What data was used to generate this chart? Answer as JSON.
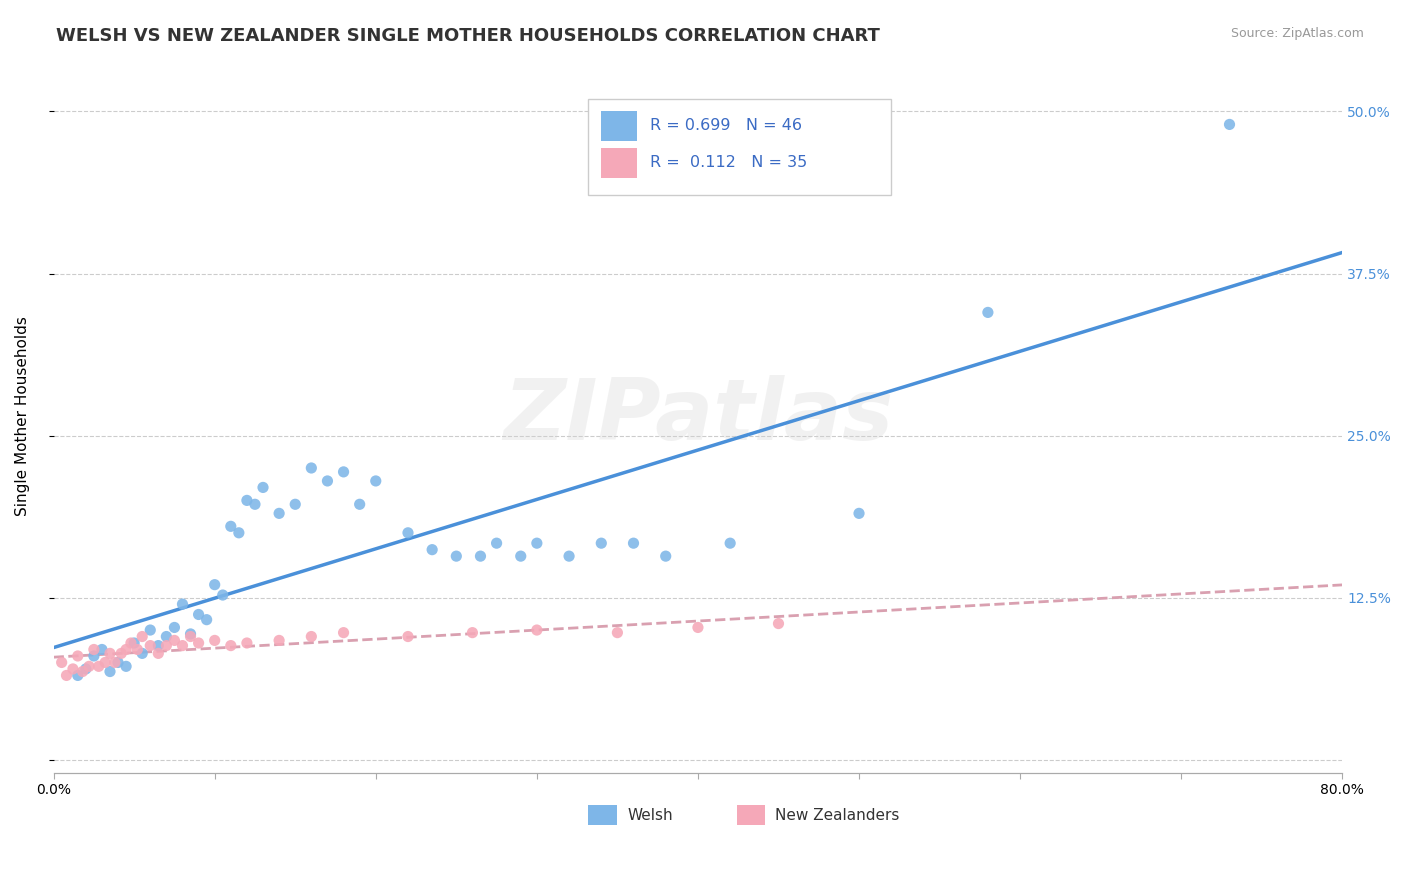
{
  "title": "WELSH VS NEW ZEALANDER SINGLE MOTHER HOUSEHOLDS CORRELATION CHART",
  "source_text": "Source: ZipAtlas.com",
  "ylabel": "Single Mother Households",
  "xlim": [
    0.0,
    0.8
  ],
  "ylim": [
    -0.01,
    0.54
  ],
  "xticks": [
    0.0,
    0.1,
    0.2,
    0.3,
    0.4,
    0.5,
    0.6,
    0.7,
    0.8
  ],
  "xticklabels": [
    "0.0%",
    "",
    "",
    "",
    "",
    "",
    "",
    "",
    "80.0%"
  ],
  "ytick_positions": [
    0.0,
    0.125,
    0.25,
    0.375,
    0.5
  ],
  "ytick_labels": [
    "",
    "12.5%",
    "25.0%",
    "37.5%",
    "50.0%"
  ],
  "welsh_color": "#7EB6E8",
  "nz_color": "#F5A8B8",
  "welsh_line_color": "#4A90D9",
  "nz_line_color": "#D9A0B0",
  "R_welsh": 0.699,
  "N_welsh": 46,
  "R_nz": 0.112,
  "N_nz": 35,
  "legend_color": "#3B6BC4",
  "watermark": "ZIPatlas",
  "background_color": "#FFFFFF",
  "grid_color": "#CCCCCC",
  "welsh_scatter_x": [
    0.015,
    0.02,
    0.025,
    0.03,
    0.035,
    0.04,
    0.045,
    0.05,
    0.055,
    0.06,
    0.065,
    0.07,
    0.075,
    0.08,
    0.085,
    0.09,
    0.095,
    0.1,
    0.105,
    0.11,
    0.115,
    0.12,
    0.125,
    0.13,
    0.14,
    0.15,
    0.16,
    0.17,
    0.18,
    0.19,
    0.2,
    0.22,
    0.235,
    0.25,
    0.265,
    0.275,
    0.29,
    0.3,
    0.32,
    0.34,
    0.36,
    0.38,
    0.42,
    0.5,
    0.58,
    0.73
  ],
  "welsh_scatter_y": [
    0.065,
    0.07,
    0.08,
    0.085,
    0.068,
    0.075,
    0.072,
    0.09,
    0.082,
    0.1,
    0.088,
    0.095,
    0.102,
    0.12,
    0.097,
    0.112,
    0.108,
    0.135,
    0.127,
    0.18,
    0.175,
    0.2,
    0.197,
    0.21,
    0.19,
    0.197,
    0.225,
    0.215,
    0.222,
    0.197,
    0.215,
    0.175,
    0.162,
    0.157,
    0.157,
    0.167,
    0.157,
    0.167,
    0.157,
    0.167,
    0.167,
    0.157,
    0.167,
    0.19,
    0.345,
    0.49
  ],
  "nz_scatter_x": [
    0.005,
    0.008,
    0.012,
    0.015,
    0.018,
    0.022,
    0.025,
    0.028,
    0.032,
    0.035,
    0.038,
    0.042,
    0.045,
    0.048,
    0.052,
    0.055,
    0.06,
    0.065,
    0.07,
    0.075,
    0.08,
    0.085,
    0.09,
    0.1,
    0.11,
    0.12,
    0.14,
    0.16,
    0.18,
    0.22,
    0.26,
    0.3,
    0.35,
    0.4,
    0.45
  ],
  "nz_scatter_y": [
    0.075,
    0.065,
    0.07,
    0.08,
    0.068,
    0.072,
    0.085,
    0.072,
    0.075,
    0.082,
    0.075,
    0.082,
    0.085,
    0.09,
    0.085,
    0.095,
    0.088,
    0.082,
    0.088,
    0.092,
    0.088,
    0.095,
    0.09,
    0.092,
    0.088,
    0.09,
    0.092,
    0.095,
    0.098,
    0.095,
    0.098,
    0.1,
    0.098,
    0.102,
    0.105
  ]
}
